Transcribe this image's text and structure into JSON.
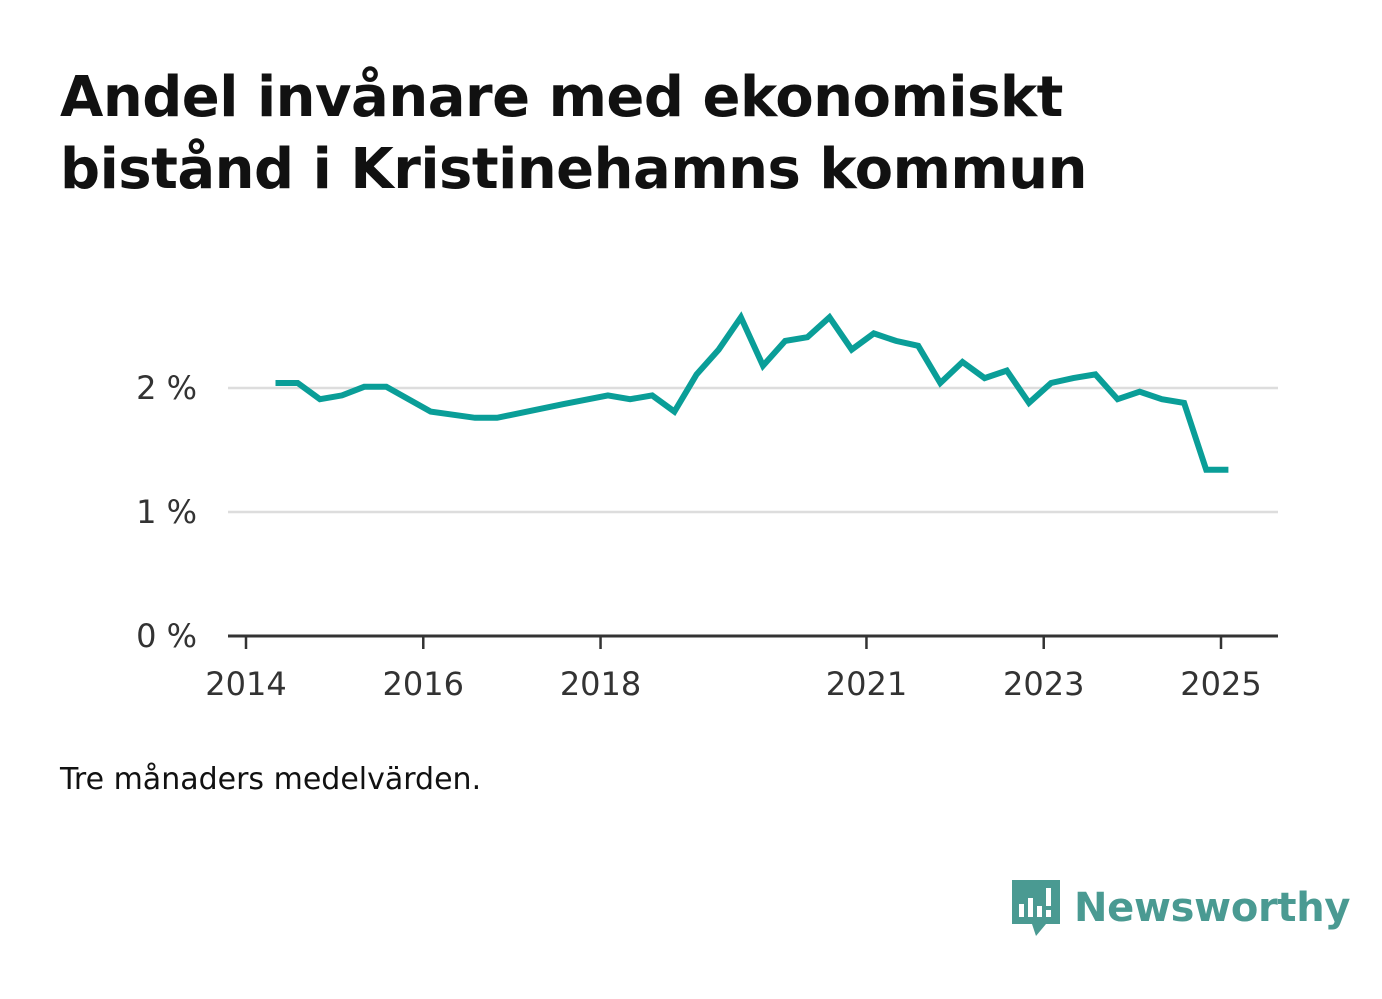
{
  "title": "Andel invånare med ekonomiskt bistånd i Kristinehamns kommun",
  "note": "Tre månaders medelvärden.",
  "brand": {
    "name": "Newsworthy",
    "icon": "bar-chart-speech-bubble-icon",
    "color": "#4a9a92"
  },
  "colors": {
    "line": "#0a9e98",
    "grid": "#dddddd",
    "axis": "#333333"
  },
  "chart_data": {
    "type": "line",
    "title": "Andel invånare med ekonomiskt bistånd i Kristinehamns kommun",
    "xlabel": "",
    "ylabel": "",
    "x_ticks": [
      "2014",
      "2016",
      "2018",
      "2021",
      "2023",
      "2025"
    ],
    "y_ticks": [
      "0 %",
      "1 %",
      "2 %"
    ],
    "ylim": [
      0,
      3
    ],
    "grid": true,
    "series": [
      {
        "values": [
          {
            "x": "2014-05",
            "y": 2.04
          },
          {
            "x": "2014-08",
            "y": 2.04
          },
          {
            "x": "2014-11",
            "y": 1.91
          },
          {
            "x": "2015-02",
            "y": 1.94
          },
          {
            "x": "2015-05",
            "y": 2.01
          },
          {
            "x": "2015-08",
            "y": 2.01
          },
          {
            "x": "2016-02",
            "y": 1.81
          },
          {
            "x": "2016-08",
            "y": 1.76
          },
          {
            "x": "2016-11",
            "y": 1.76
          },
          {
            "x": "2017-08",
            "y": 1.87
          },
          {
            "x": "2018-02",
            "y": 1.94
          },
          {
            "x": "2018-05",
            "y": 1.91
          },
          {
            "x": "2018-08",
            "y": 1.94
          },
          {
            "x": "2018-11",
            "y": 1.81
          },
          {
            "x": "2019-02",
            "y": 2.11
          },
          {
            "x": "2019-05",
            "y": 2.31
          },
          {
            "x": "2019-08",
            "y": 2.57
          },
          {
            "x": "2019-11",
            "y": 2.18
          },
          {
            "x": "2020-02",
            "y": 2.38
          },
          {
            "x": "2020-05",
            "y": 2.41
          },
          {
            "x": "2020-08",
            "y": 2.57
          },
          {
            "x": "2020-11",
            "y": 2.31
          },
          {
            "x": "2021-02",
            "y": 2.44
          },
          {
            "x": "2021-05",
            "y": 2.38
          },
          {
            "x": "2021-08",
            "y": 2.34
          },
          {
            "x": "2021-11",
            "y": 2.04
          },
          {
            "x": "2022-02",
            "y": 2.21
          },
          {
            "x": "2022-05",
            "y": 2.08
          },
          {
            "x": "2022-08",
            "y": 2.14
          },
          {
            "x": "2022-11",
            "y": 1.88
          },
          {
            "x": "2023-02",
            "y": 2.04
          },
          {
            "x": "2023-05",
            "y": 2.08
          },
          {
            "x": "2023-08",
            "y": 2.11
          },
          {
            "x": "2023-11",
            "y": 1.91
          },
          {
            "x": "2024-02",
            "y": 1.97
          },
          {
            "x": "2024-05",
            "y": 1.91
          },
          {
            "x": "2024-08",
            "y": 1.88
          },
          {
            "x": "2024-11",
            "y": 1.34
          },
          {
            "x": "2025-02",
            "y": 1.34
          }
        ]
      }
    ]
  }
}
